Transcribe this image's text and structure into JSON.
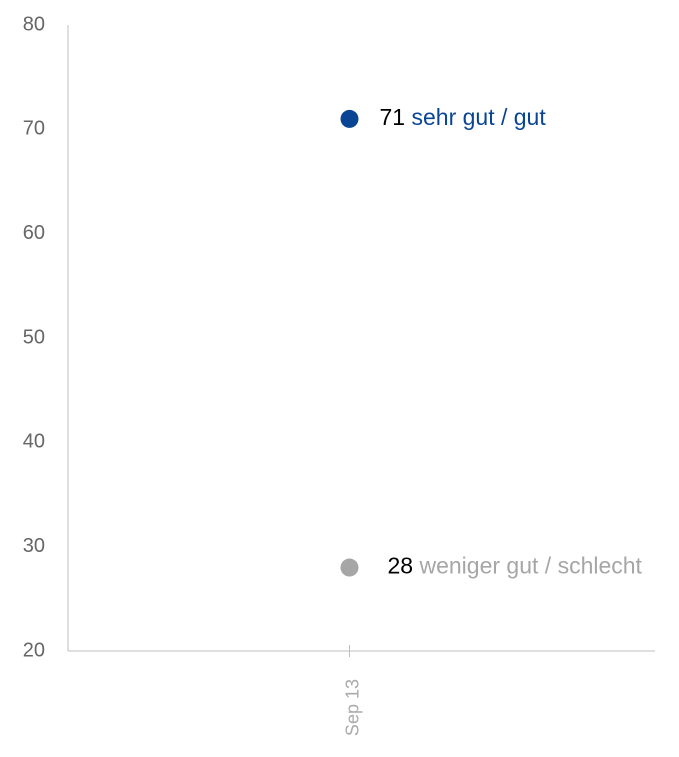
{
  "chart_data": {
    "type": "line",
    "categories": [
      "Sep 13"
    ],
    "series": [
      {
        "name": "sehr gut / gut",
        "color": "#0a4595",
        "values": [
          71
        ]
      },
      {
        "name": "weniger gut / schlecht",
        "color": "#a6a6a6",
        "values": [
          28
        ]
      }
    ],
    "ylim": [
      20,
      80
    ],
    "yticks": [
      20,
      30,
      40,
      50,
      60,
      70,
      80
    ],
    "grid": false
  }
}
